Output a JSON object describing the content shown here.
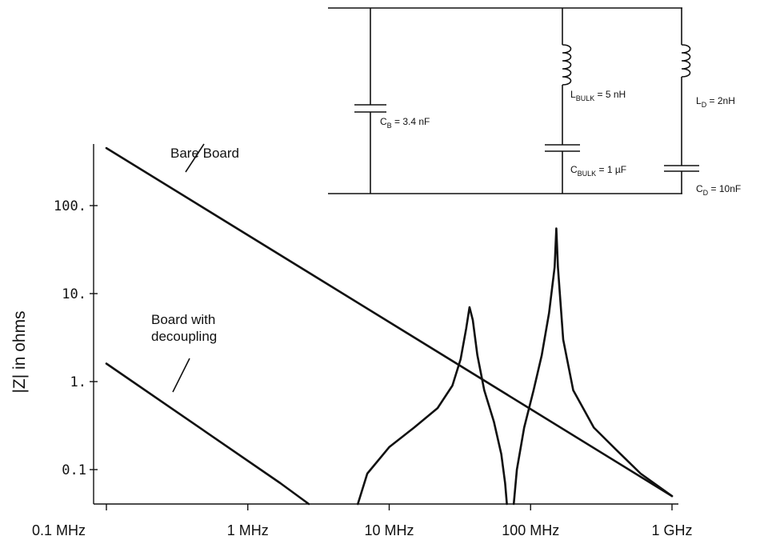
{
  "chart_data": {
    "type": "line",
    "x_scale": "log",
    "y_scale": "log",
    "xlim_hz": [
      100000,
      1000000000
    ],
    "ylim": [
      0.04,
      500
    ],
    "ylabel": "|Z| in ohms",
    "xlabel": "",
    "x_ticks": [
      {
        "value": 100000,
        "label": "0.1 MHz"
      },
      {
        "value": 1000000,
        "label": "1 MHz"
      },
      {
        "value": 10000000,
        "label": "10 MHz"
      },
      {
        "value": 100000000,
        "label": "100 MHz"
      },
      {
        "value": 1000000000,
        "label": "1 GHz"
      }
    ],
    "y_ticks": [
      {
        "value": 100,
        "label": "100."
      },
      {
        "value": 10,
        "label": "10."
      },
      {
        "value": 1,
        "label": "1."
      },
      {
        "value": 0.1,
        "label": "0.1"
      }
    ],
    "grid": false,
    "series": [
      {
        "name": "Bare Board",
        "points": [
          [
            100000,
            450
          ],
          [
            1000000000,
            0.05
          ]
        ]
      },
      {
        "name": "Board with decoupling",
        "segments": [
          [
            [
              100000,
              1.6
            ],
            [
              1700000,
              0.07
            ],
            [
              2700000,
              0.04
            ]
          ],
          [
            [
              6000000,
              0.04
            ],
            [
              7000000,
              0.09
            ],
            [
              10000000,
              0.18
            ],
            [
              15000000,
              0.3
            ],
            [
              22000000,
              0.5
            ],
            [
              28000000,
              0.9
            ],
            [
              32000000,
              1.8
            ],
            [
              35000000,
              4.0
            ],
            [
              37000000,
              7.0
            ],
            [
              39000000,
              5.0
            ],
            [
              42000000,
              2.0
            ],
            [
              47000000,
              0.8
            ],
            [
              55000000,
              0.35
            ],
            [
              62000000,
              0.15
            ],
            [
              66000000,
              0.07
            ],
            [
              68000000,
              0.04
            ]
          ],
          [
            [
              76000000,
              0.04
            ],
            [
              80000000,
              0.1
            ],
            [
              90000000,
              0.3
            ],
            [
              105000000,
              0.8
            ],
            [
              120000000,
              2.0
            ],
            [
              135000000,
              6.0
            ],
            [
              148000000,
              20
            ],
            [
              152000000,
              55
            ],
            [
              156000000,
              20
            ],
            [
              170000000,
              3.0
            ],
            [
              200000000,
              0.8
            ],
            [
              280000000,
              0.3
            ],
            [
              400000000,
              0.17
            ],
            [
              600000000,
              0.09
            ],
            [
              1000000000,
              0.05
            ]
          ]
        ]
      }
    ],
    "annotations": [
      {
        "text": "Bare Board",
        "points_to": "Bare Board"
      },
      {
        "text": "Board with",
        "points_to": "Board with decoupling"
      },
      {
        "text": "decoupling",
        "points_to": "Board with decoupling"
      }
    ],
    "inset_circuit": {
      "components": [
        {
          "symbol": "C",
          "subscript": "B",
          "value": " = 3.4 nF"
        },
        {
          "symbol": "L",
          "subscript": "BULK",
          "value": " = 5 nH"
        },
        {
          "symbol": "C",
          "subscript": "BULK",
          "value": " = 1 µF"
        },
        {
          "symbol": "L",
          "subscript": "D",
          "value": " = 2nH"
        },
        {
          "symbol": "C",
          "subscript": "D",
          "value": " = 10nF"
        }
      ]
    }
  }
}
